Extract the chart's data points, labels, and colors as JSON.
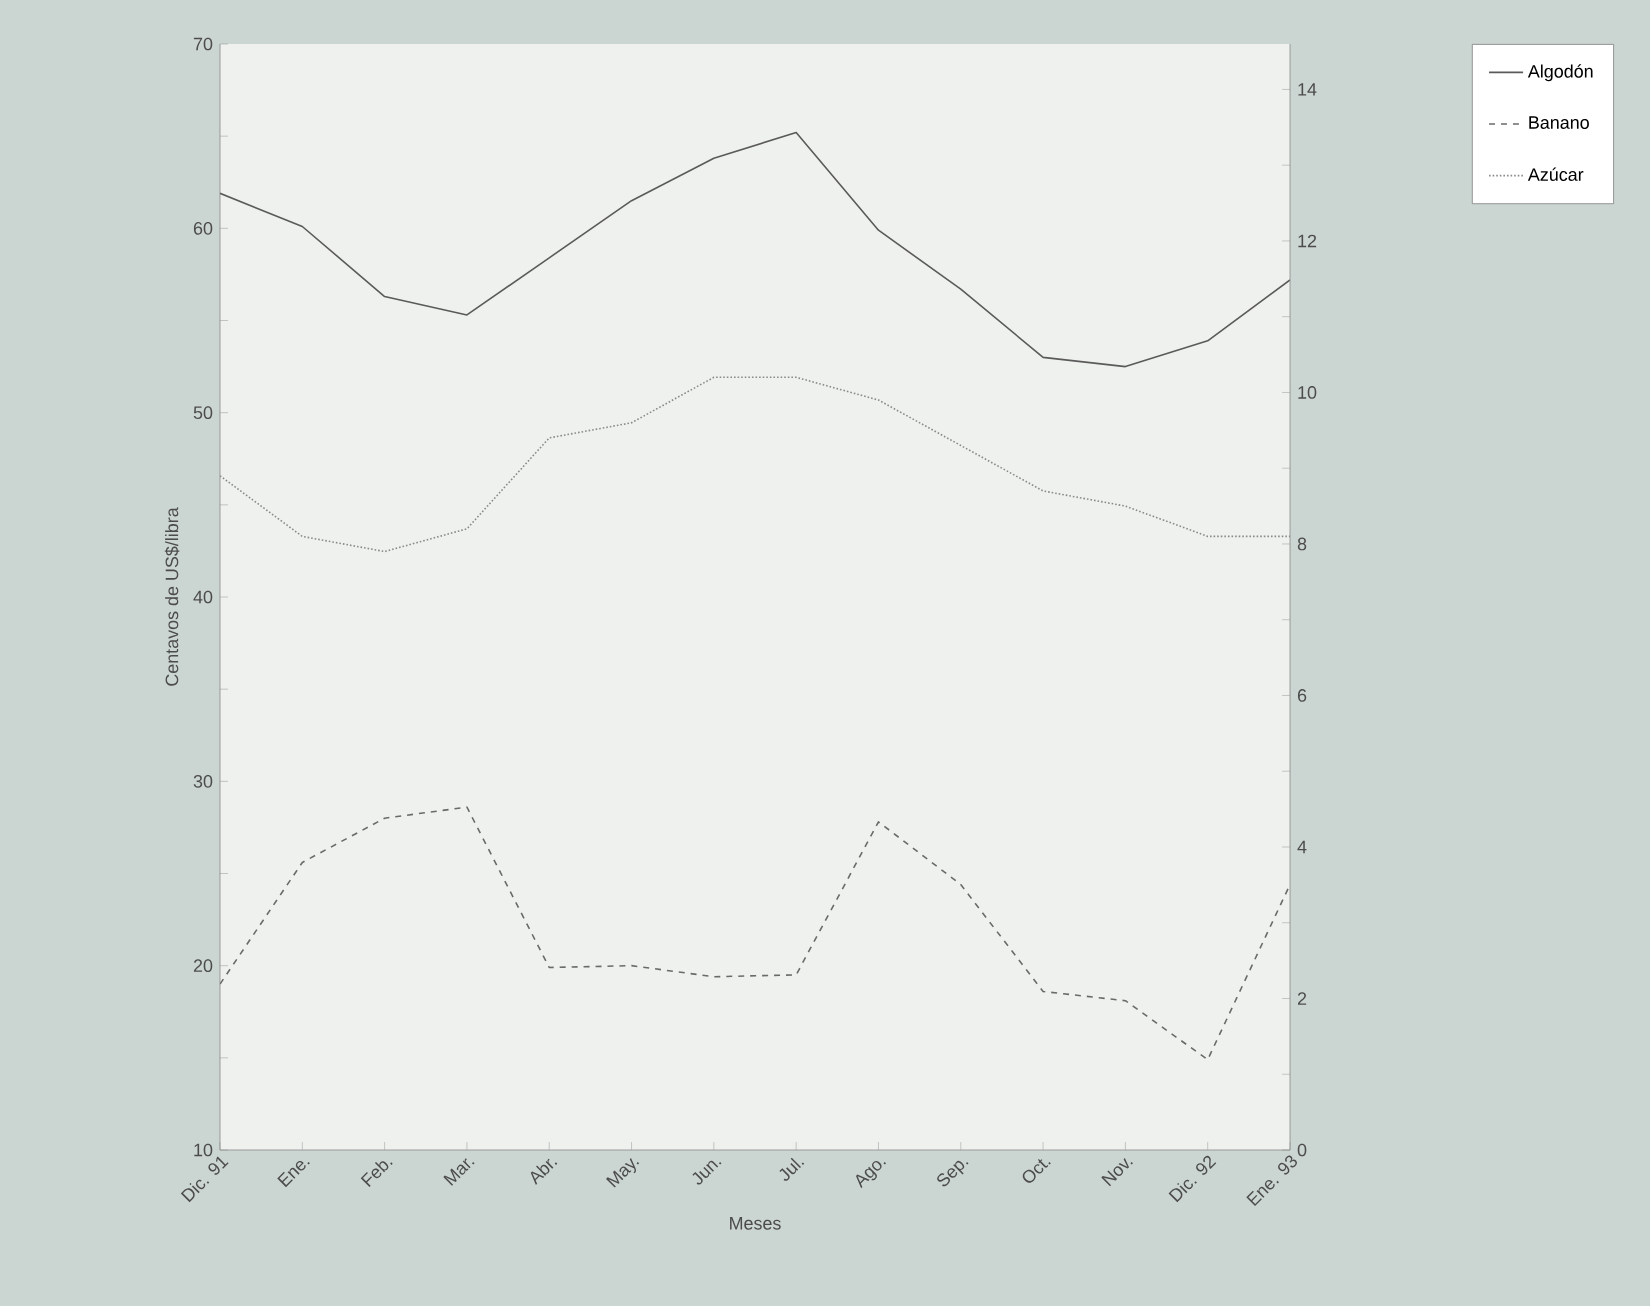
{
  "chart_data": {
    "type": "line",
    "xlabel": "Meses",
    "ylabel": "Centavos de US$/libra",
    "categories": [
      "Dic. 91",
      "Ene.",
      "Feb.",
      "Mar.",
      "Abr.",
      "May.",
      "Jun.",
      "Jul.",
      "Ago.",
      "Sep.",
      "Oct.",
      "Nov.",
      "Dic. 92",
      "Ene. 93"
    ],
    "series": [
      {
        "name": "Algodón",
        "color": "#5a5a5a",
        "line_style": "solid",
        "values": [
          61.9,
          60.1,
          56.3,
          55.3,
          58.4,
          61.5,
          63.8,
          65.2,
          59.9,
          56.7,
          53.0,
          52.5,
          53.9,
          57.2
        ]
      },
      {
        "name": "Banano",
        "color": "#6a6a6a",
        "line_style": "dashed",
        "values": [
          19.0,
          25.6,
          28.0,
          28.6,
          19.9,
          20.0,
          19.4,
          19.5,
          27.8,
          24.4,
          18.6,
          18.1,
          14.9,
          24.4
        ]
      },
      {
        "name": "Azúcar",
        "color": "#8a8a8a",
        "line_style": "dotted",
        "axis": "y2",
        "values": [
          8.9,
          8.1,
          7.9,
          8.2,
          9.4,
          9.6,
          10.2,
          10.2,
          9.9,
          9.3,
          8.7,
          8.5,
          8.1,
          8.1
        ]
      }
    ],
    "ylim": [
      10,
      70
    ],
    "yticks": [
      10,
      {
        "value": 15,
        "label": null
      },
      20,
      {
        "value": 25,
        "label": null
      },
      30,
      {
        "value": 35,
        "label": null
      },
      40,
      {
        "value": 45,
        "label": null
      },
      50,
      {
        "value": 55,
        "label": null
      },
      60,
      {
        "value": 65,
        "label": null
      },
      70
    ],
    "y2lim": [
      0,
      14.6
    ],
    "y2ticks": [
      0,
      {
        "value": 1,
        "label": null
      },
      2,
      {
        "value": 3,
        "label": null
      },
      4,
      {
        "value": 5,
        "label": null
      },
      6,
      {
        "value": 7,
        "label": null
      },
      8,
      {
        "value": 9,
        "label": null
      },
      10,
      {
        "value": 11,
        "label": null
      },
      12,
      {
        "value": 13,
        "label": null
      },
      14
    ],
    "legend": "right",
    "grid": false,
    "marker": "none"
  }
}
